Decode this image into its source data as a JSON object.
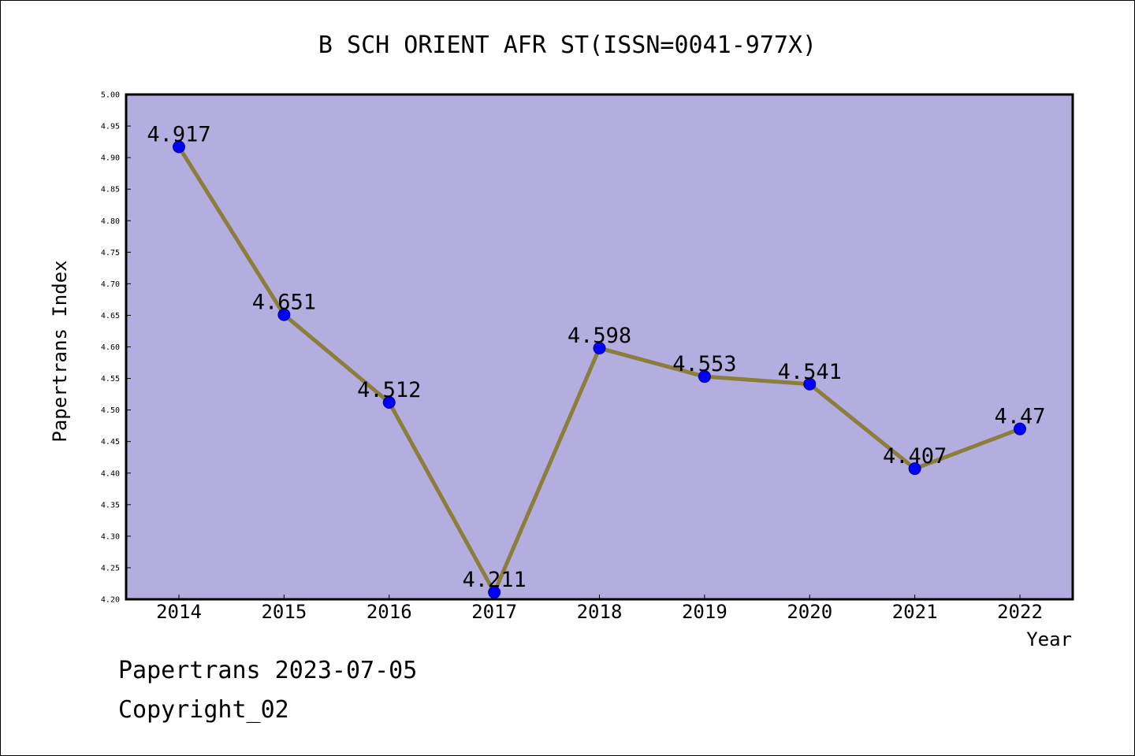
{
  "chart_data": {
    "type": "line",
    "title": "B SCH ORIENT AFR ST(ISSN=0041-977X)",
    "xlabel": "Year",
    "ylabel": "Papertrans Index",
    "categories": [
      "2014",
      "2015",
      "2016",
      "2017",
      "2018",
      "2019",
      "2020",
      "2021",
      "2022"
    ],
    "series": [
      {
        "values": [
          4.917,
          4.651,
          4.512,
          4.211,
          4.598,
          4.553,
          4.541,
          4.407,
          4.47
        ]
      }
    ],
    "data_labels": [
      "4.917",
      "4.651",
      "4.512",
      "4.211",
      "4.598",
      "4.553",
      "4.541",
      "4.407",
      "4.47"
    ],
    "ylim": [
      4.2,
      5.0
    ],
    "yticks": [
      "4.20",
      "4.25",
      "4.30",
      "4.35",
      "4.40",
      "4.45",
      "4.50",
      "4.55",
      "4.60",
      "4.65",
      "4.70",
      "4.75",
      "4.80",
      "4.85",
      "4.90",
      "4.95",
      "5.00"
    ],
    "grid": false,
    "colors": {
      "plot_background": "#b4aee0",
      "line": "#8b7d3a",
      "marker": "#0000ff"
    }
  },
  "footer": {
    "line1": "Papertrans 2023-07-05",
    "line2": "Copyright_02"
  }
}
